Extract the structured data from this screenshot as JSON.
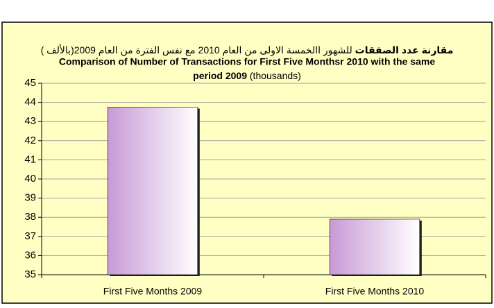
{
  "chart_data": {
    "type": "bar",
    "title_ar_bold": "مقارنة عدد الصفقات",
    "title_ar_rest": " للشهور االخمسة الاولى من العام 2010 مع نفس الفترة من العام 2009(بالألف )",
    "title_line1": "Comparison of  Number of Transactions for First Five  Monthsr 2010 with  the  same",
    "title_line2_bold": "period 2009",
    "title_line2_rest": " (thousands)",
    "categories": [
      "First Five Months 2009",
      "First Five Months 2010"
    ],
    "values": [
      43.75,
      37.9
    ],
    "color": "#c89ad6",
    "ylim": [
      35,
      45
    ],
    "yticks": [
      35,
      36,
      37,
      38,
      39,
      40,
      41,
      42,
      43,
      44,
      45
    ],
    "grid": true
  }
}
